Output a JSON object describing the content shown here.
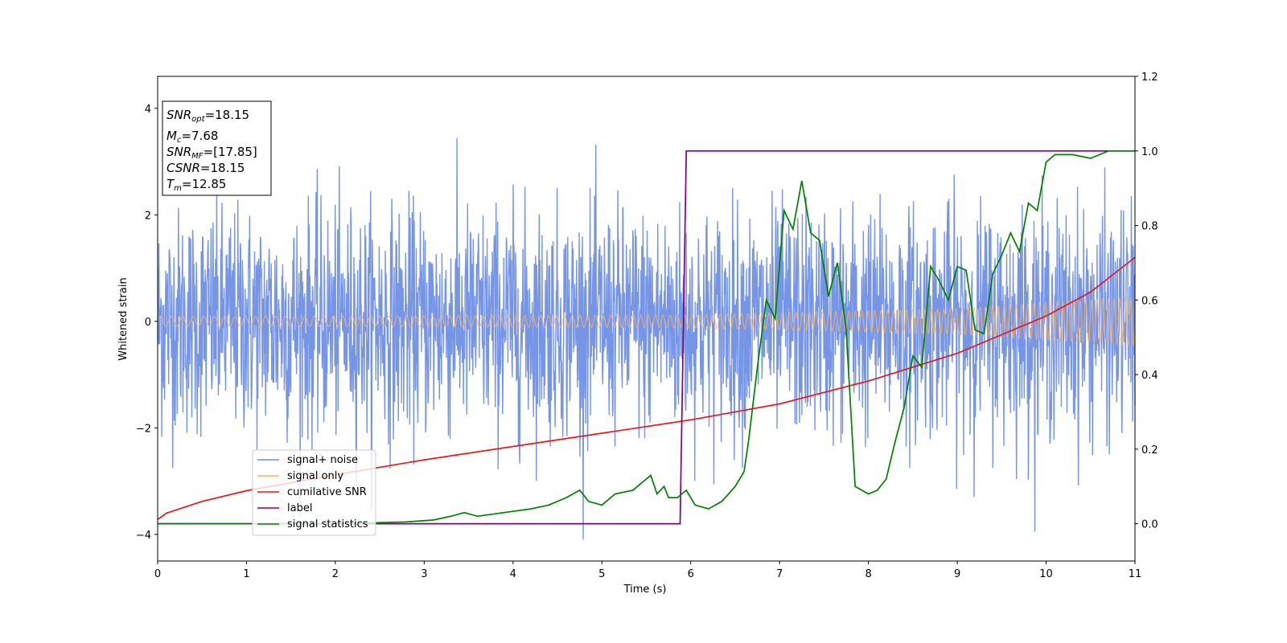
{
  "chart_data": {
    "type": "line",
    "xlabel": "Time (s)",
    "ylabel": "Whitened strain",
    "xlim": [
      0,
      11
    ],
    "ylim_left": [
      -4.5,
      4.6
    ],
    "ylim_right": [
      -0.1,
      1.2
    ],
    "x_ticks": [
      "0",
      "1",
      "2",
      "3",
      "4",
      "5",
      "6",
      "7",
      "8",
      "9",
      "10",
      "11"
    ],
    "y_ticks_left": [
      "−4",
      "−2",
      "0",
      "2",
      "4"
    ],
    "y_ticks_right": [
      "0.0",
      "0.2",
      "0.4",
      "0.6",
      "0.8",
      "1.0",
      "1.2"
    ],
    "legend_location": "lower-left",
    "colors": {
      "signal_noise": "#6f8fe6",
      "signal_only": "#f5b56a",
      "cumulative_snr": "#e41a1c",
      "label": "#800080",
      "signal_statistics": "#008000"
    },
    "annotation": {
      "snr_opt": {
        "base": "SNR",
        "sub": "opt",
        "value": "=18.15"
      },
      "mc": {
        "base": "M",
        "sub": "c",
        "value": "=7.68"
      },
      "snr_mf": {
        "base": "SNR",
        "sub": "MF",
        "value": "=[17.85]"
      },
      "csnr": {
        "base": "CSNR",
        "value": "=18.15"
      },
      "tm": {
        "base": "T",
        "sub": "m",
        "value": "=12.85"
      }
    },
    "series": [
      {
        "name": "signal+ noise",
        "axis": "left",
        "description_range": [
          -4.1,
          4.2
        ],
        "std": 1.05
      },
      {
        "name": "signal only",
        "axis": "left",
        "amplitude": {
          "x": [
            0,
            6,
            9,
            11
          ],
          "y": [
            0.09,
            0.12,
            0.24,
            0.46
          ]
        }
      },
      {
        "name": "cumilative SNR",
        "axis": "left",
        "x": [
          0,
          0.1,
          0.5,
          1,
          2,
          3,
          4,
          5,
          6,
          7,
          8,
          9,
          10,
          10.5,
          11
        ],
        "y": [
          -3.72,
          -3.6,
          -3.38,
          -3.18,
          -2.88,
          -2.6,
          -2.35,
          -2.1,
          -1.85,
          -1.55,
          -1.12,
          -0.6,
          0.1,
          0.55,
          1.2
        ]
      },
      {
        "name": "label",
        "axis": "right",
        "x": [
          0,
          5.88,
          5.95,
          11
        ],
        "y": [
          0.0,
          0.0,
          1.0,
          1.0
        ]
      },
      {
        "name": "signal statistics",
        "axis": "right",
        "x": [
          0,
          1,
          2,
          2.8,
          3.1,
          3.3,
          3.45,
          3.6,
          3.9,
          4.2,
          4.4,
          4.6,
          4.75,
          4.85,
          5.0,
          5.15,
          5.35,
          5.55,
          5.62,
          5.7,
          5.75,
          5.85,
          5.95,
          6.05,
          6.2,
          6.35,
          6.5,
          6.6,
          6.65,
          6.75,
          6.85,
          6.95,
          7.05,
          7.15,
          7.25,
          7.35,
          7.45,
          7.55,
          7.65,
          7.75,
          7.85,
          8.0,
          8.1,
          8.2,
          8.3,
          8.4,
          8.5,
          8.6,
          8.7,
          8.8,
          8.9,
          9.0,
          9.1,
          9.2,
          9.3,
          9.4,
          9.5,
          9.6,
          9.7,
          9.8,
          9.9,
          10.0,
          10.1,
          10.3,
          10.5,
          10.7,
          11
        ],
        "y": [
          0.0,
          0.0,
          0.0,
          0.005,
          0.01,
          0.02,
          0.03,
          0.02,
          0.03,
          0.04,
          0.05,
          0.07,
          0.09,
          0.06,
          0.05,
          0.08,
          0.09,
          0.13,
          0.08,
          0.1,
          0.07,
          0.07,
          0.09,
          0.05,
          0.04,
          0.06,
          0.1,
          0.14,
          0.22,
          0.42,
          0.6,
          0.55,
          0.84,
          0.79,
          0.92,
          0.78,
          0.76,
          0.61,
          0.7,
          0.52,
          0.1,
          0.08,
          0.09,
          0.12,
          0.22,
          0.31,
          0.45,
          0.42,
          0.69,
          0.65,
          0.6,
          0.69,
          0.68,
          0.52,
          0.51,
          0.67,
          0.72,
          0.78,
          0.73,
          0.86,
          0.84,
          0.97,
          0.99,
          0.99,
          0.98,
          1.0,
          1.0
        ]
      }
    ]
  }
}
